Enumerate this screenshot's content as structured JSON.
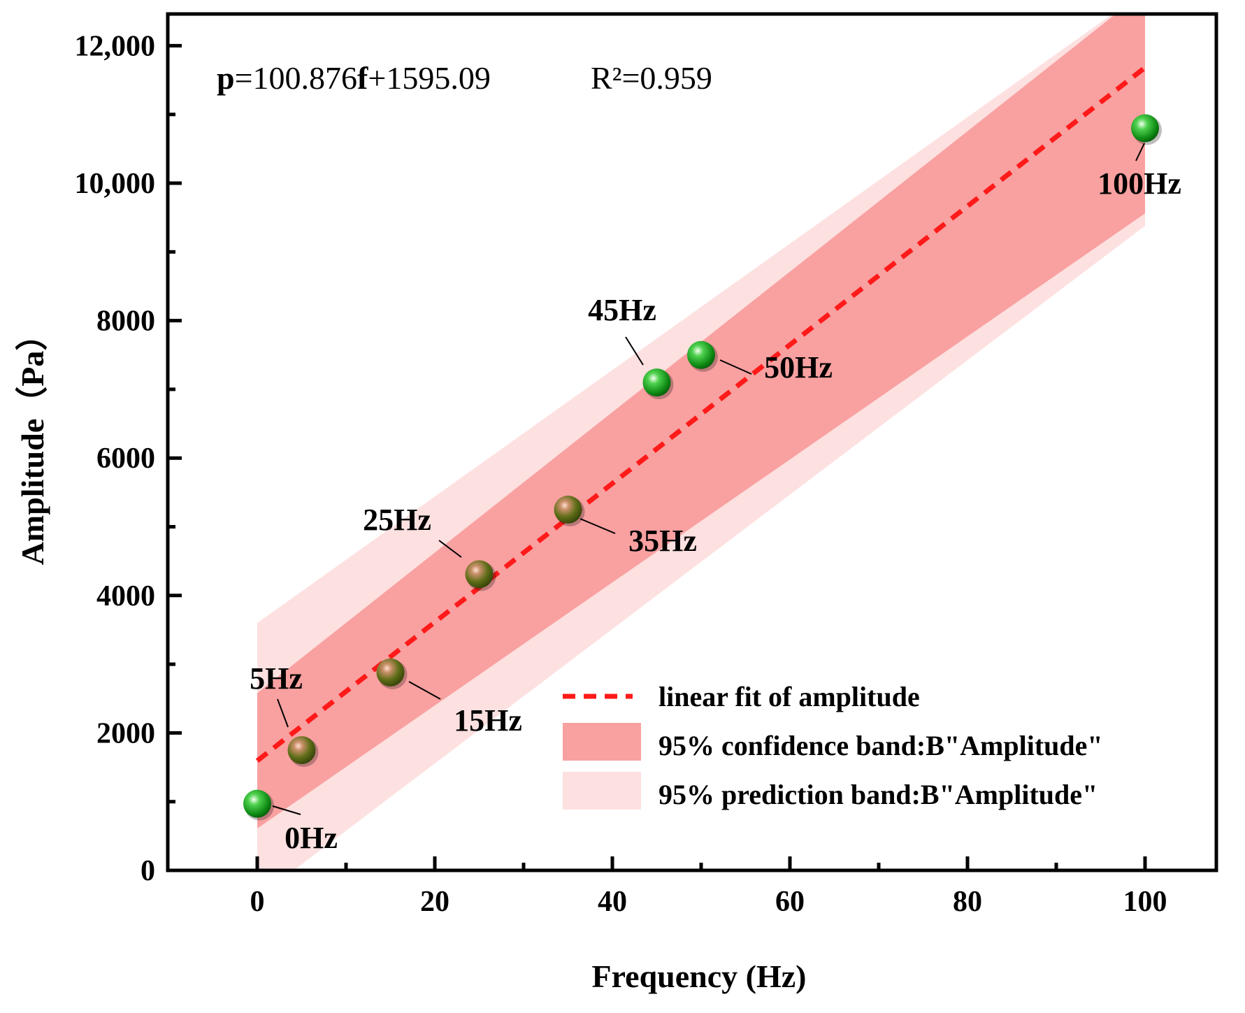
{
  "chart_data": {
    "type": "scatter",
    "title": "",
    "xlabel": "Frequency (Hz)",
    "ylabel": "Amplitude（Pa）",
    "xlim": [
      -10,
      110
    ],
    "ylim": [
      0,
      12500
    ],
    "x_ticks": [
      {
        "value": 0,
        "label": "0"
      },
      {
        "value": 20,
        "label": "20"
      },
      {
        "value": 40,
        "label": "40"
      },
      {
        "value": 60,
        "label": "60"
      },
      {
        "value": 80,
        "label": "80"
      },
      {
        "value": 100,
        "label": "100"
      }
    ],
    "y_ticks": [
      {
        "value": 0,
        "label": "0"
      },
      {
        "value": 2000,
        "label": "2000"
      },
      {
        "value": 4000,
        "label": "4000"
      },
      {
        "value": 6000,
        "label": "6000"
      },
      {
        "value": 8000,
        "label": "8000"
      },
      {
        "value": 10000,
        "label": "10,000"
      },
      {
        "value": 12000,
        "label": "12,000"
      }
    ],
    "equation": {
      "bold_symbol": "p",
      "mid_text": "=100.876",
      "bold_symbol2": "f",
      "tail_text": "+1595.09",
      "r_squared": "R²=0.959"
    },
    "fit": {
      "slope": 100.876,
      "intercept": 1595.09,
      "x_range": [
        0,
        100
      ],
      "color": "#ff1a1a"
    },
    "confidence_band": {
      "color": "#f9a0a0",
      "lower": [
        [
          0,
          610
        ],
        [
          100,
          9560
        ]
      ],
      "upper": [
        [
          0,
          2580
        ],
        [
          100,
          12800
        ]
      ]
    },
    "prediction_band": {
      "color": "#fde0e0",
      "lower": [
        [
          0,
          -400
        ],
        [
          100,
          9380
        ]
      ],
      "upper": [
        [
          0,
          3600
        ],
        [
          100,
          12800
        ]
      ]
    },
    "points": [
      {
        "x": 0,
        "y": 970,
        "label": "0Hz",
        "color": "green"
      },
      {
        "x": 5,
        "y": 1750,
        "label": "5Hz",
        "color": "olive"
      },
      {
        "x": 15,
        "y": 2880,
        "label": "15Hz",
        "color": "olive"
      },
      {
        "x": 25,
        "y": 4310,
        "label": "25Hz",
        "color": "olive"
      },
      {
        "x": 35,
        "y": 5250,
        "label": "35Hz",
        "color": "olive"
      },
      {
        "x": 45,
        "y": 7100,
        "label": "45Hz",
        "color": "green"
      },
      {
        "x": 50,
        "y": 7500,
        "label": "50Hz",
        "color": "green"
      },
      {
        "x": 100,
        "y": 10800,
        "label": "100Hz",
        "color": "green"
      }
    ],
    "legend": [
      {
        "type": "line",
        "label": "linear fit of amplitude"
      },
      {
        "type": "confidence",
        "label": "95% confidence band:B\"Amplitude\""
      },
      {
        "type": "prediction",
        "label": "95% prediction band:B\"Amplitude\""
      }
    ]
  }
}
